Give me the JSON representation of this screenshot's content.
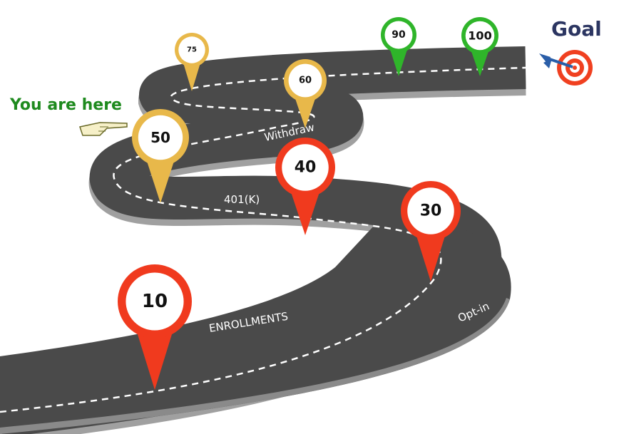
{
  "here_label": "You are here",
  "goal_label": "Goal",
  "road_labels": {
    "withdraw": "Withdraw",
    "k401": "401(K)",
    "enrollments": "ENROLLMENTS",
    "optin": "Opt-in"
  },
  "milestones": [
    {
      "value": "10",
      "color": "#f03a1e"
    },
    {
      "value": "30",
      "color": "#f03a1e"
    },
    {
      "value": "40",
      "color": "#f03a1e"
    },
    {
      "value": "50",
      "color": "#e8b84a"
    },
    {
      "value": "60",
      "color": "#e8b84a"
    },
    {
      "value": "75",
      "color": "#e8b84a"
    },
    {
      "value": "90",
      "color": "#2fb52a"
    },
    {
      "value": "100",
      "color": "#2fb52a"
    }
  ],
  "colors": {
    "road": "#4a4a4a",
    "road_edge": "#9a9a9a",
    "dash": "#ffffff",
    "target_ring": "#f04020",
    "dart": "#2a5ea8"
  }
}
